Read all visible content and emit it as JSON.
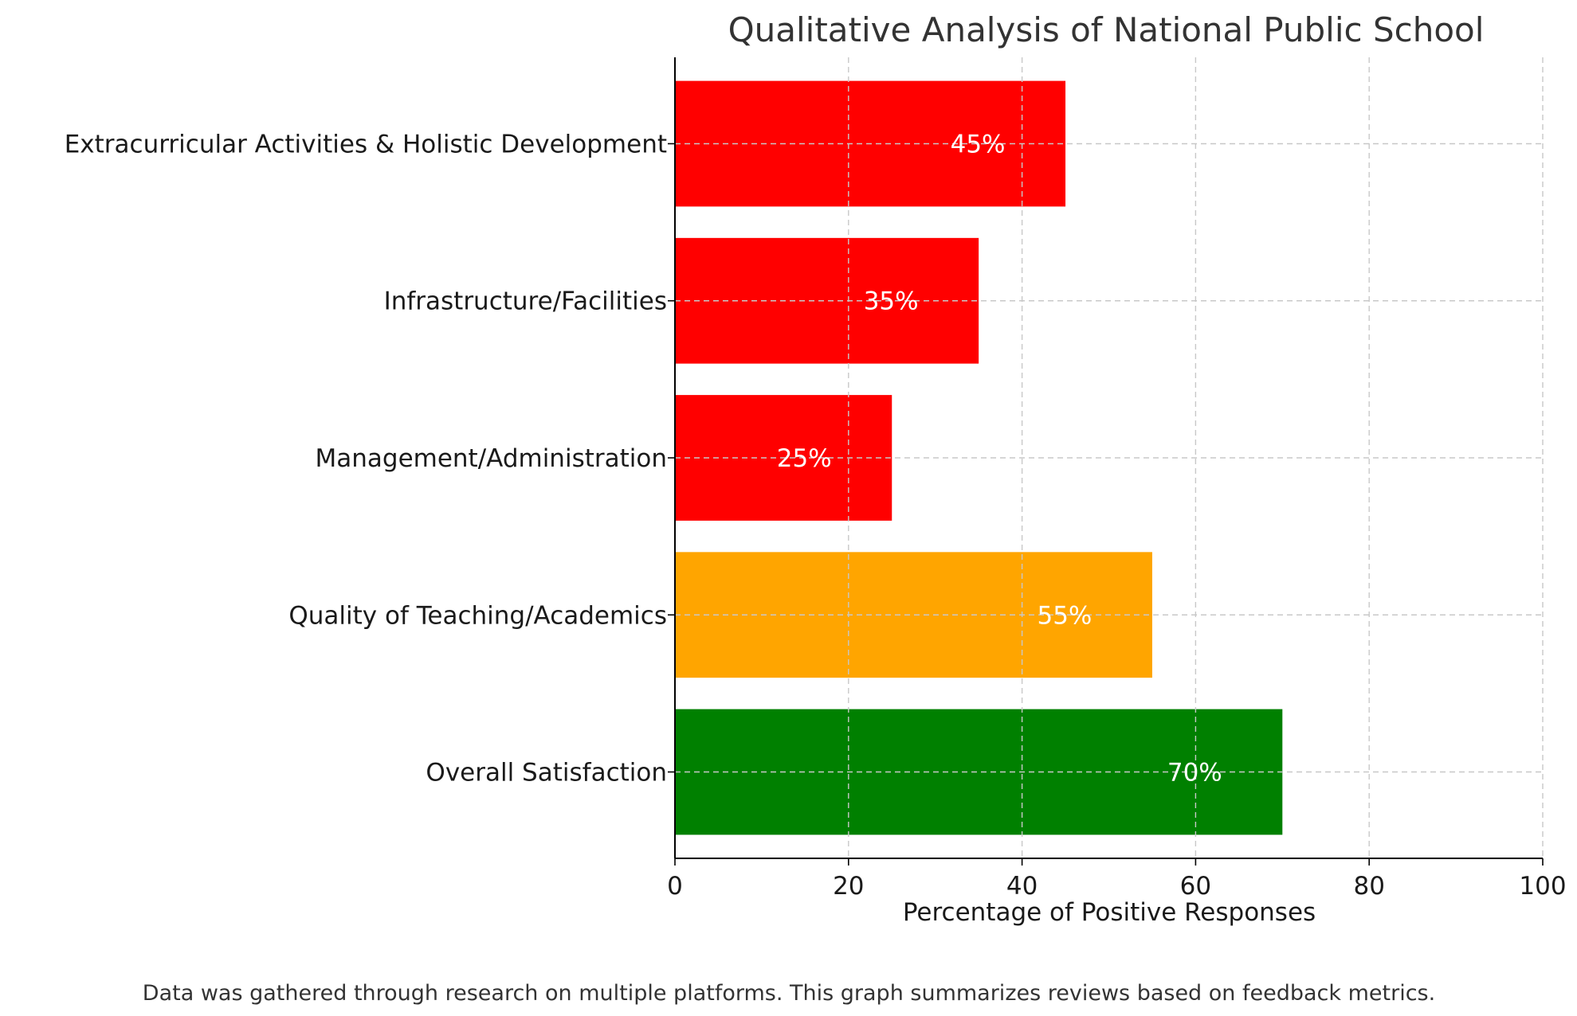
{
  "chart_data": {
    "type": "bar",
    "orientation": "horizontal",
    "title": "Qualitative Analysis of National Public School",
    "xlabel": "Percentage of Positive Responses",
    "ylabel": "",
    "xlim": [
      0,
      100
    ],
    "x_ticks": [
      0,
      20,
      40,
      60,
      80,
      100
    ],
    "grid": true,
    "categories": [
      "Overall Satisfaction",
      "Quality of Teaching/Academics",
      "Management/Administration",
      "Infrastructure/Facilities",
      "Extracurricular Activities & Holistic Development"
    ],
    "values": [
      70,
      55,
      25,
      35,
      45
    ],
    "value_labels": [
      "70%",
      "55%",
      "25%",
      "35%",
      "45%"
    ],
    "colors": [
      "#008000",
      "#ffa500",
      "#ff0000",
      "#ff0000",
      "#ff0000"
    ],
    "footnote": "Data was gathered through research on multiple platforms. This graph summarizes reviews based on feedback metrics."
  }
}
